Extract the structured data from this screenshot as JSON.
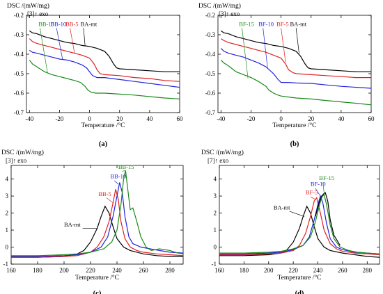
{
  "chart_data": [
    {
      "type": "line",
      "panel_label": "(a)",
      "ylabel": "DSC /(mW/mg)",
      "exo_label": "[3]↑ exo",
      "xlabel": "Temperature /°C",
      "xlim": [
        -42,
        60
      ],
      "ylim": [
        -0.7,
        -0.2
      ],
      "xticks": [
        -40,
        -20,
        0,
        20,
        40,
        60
      ],
      "yticks": [
        -0.2,
        -0.3,
        -0.4,
        -0.5,
        -0.6,
        -0.7
      ],
      "grid": false,
      "series": [
        {
          "name": "BB-15",
          "color": "#1a8a1a",
          "x": [
            -40,
            -38,
            -35,
            -30,
            -25,
            -20,
            -15,
            -10,
            -6,
            -3,
            -1,
            1,
            4,
            10,
            20,
            30,
            40,
            50,
            60
          ],
          "y": [
            -0.43,
            -0.45,
            -0.465,
            -0.49,
            -0.505,
            -0.515,
            -0.525,
            -0.535,
            -0.545,
            -0.565,
            -0.585,
            -0.595,
            -0.6,
            -0.6,
            -0.605,
            -0.61,
            -0.618,
            -0.625,
            -0.63
          ]
        },
        {
          "name": "BB-10",
          "color": "#2222dd",
          "x": [
            -40,
            -38,
            -35,
            -30,
            -25,
            -20,
            -15,
            -10,
            -5,
            -2,
            0,
            2,
            5,
            10,
            20,
            30,
            40,
            50,
            60
          ],
          "y": [
            -0.38,
            -0.39,
            -0.395,
            -0.405,
            -0.415,
            -0.425,
            -0.43,
            -0.44,
            -0.455,
            -0.47,
            -0.49,
            -0.51,
            -0.52,
            -0.52,
            -0.53,
            -0.54,
            -0.55,
            -0.56,
            -0.57
          ]
        },
        {
          "name": "BB-5",
          "color": "#e02020",
          "x": [
            -40,
            -38,
            -35,
            -30,
            -25,
            -20,
            -15,
            -10,
            -5,
            0,
            3,
            5,
            7,
            10,
            20,
            30,
            40,
            50,
            60
          ],
          "y": [
            -0.32,
            -0.335,
            -0.345,
            -0.355,
            -0.365,
            -0.375,
            -0.385,
            -0.395,
            -0.405,
            -0.42,
            -0.45,
            -0.48,
            -0.5,
            -0.505,
            -0.51,
            -0.52,
            -0.525,
            -0.535,
            -0.54
          ]
        },
        {
          "name": "BA-mt",
          "color": "#000000",
          "x": [
            -40,
            -38,
            -35,
            -30,
            -25,
            -20,
            -15,
            -10,
            -5,
            0,
            5,
            10,
            13,
            16,
            18,
            20,
            30,
            40,
            50,
            60
          ],
          "y": [
            -0.28,
            -0.29,
            -0.295,
            -0.31,
            -0.32,
            -0.33,
            -0.34,
            -0.345,
            -0.355,
            -0.36,
            -0.37,
            -0.385,
            -0.41,
            -0.45,
            -0.47,
            -0.475,
            -0.48,
            -0.485,
            -0.49,
            -0.49
          ]
        }
      ],
      "labels": [
        {
          "text": "BB-15",
          "color": "#1a8a1a",
          "x": -34,
          "y": -0.255,
          "tx": -33,
          "ty": -0.265,
          "lx": -28,
          "ly": -0.495
        },
        {
          "text": "BB-10",
          "color": "#2222dd",
          "x": -26,
          "y": -0.255,
          "tx": -22,
          "ty": -0.265,
          "lx": -18,
          "ly": -0.425
        },
        {
          "text": "BB-5",
          "color": "#e02020",
          "x": -16,
          "y": -0.255,
          "tx": -13,
          "ty": -0.265,
          "lx": -10,
          "ly": -0.395
        },
        {
          "text": "BA-mt",
          "color": "#000000",
          "x": -6,
          "y": -0.255,
          "tx": -4,
          "ty": -0.265,
          "lx": -3,
          "ly": -0.355
        }
      ]
    },
    {
      "type": "line",
      "panel_label": "(b)",
      "ylabel": "DSC /(mW/mg)",
      "exo_label": "[3]↑ exo",
      "xlabel": "Temperature /°C",
      "xlim": [
        -42,
        60
      ],
      "ylim": [
        -0.7,
        -0.2
      ],
      "xticks": [
        -40,
        -20,
        0,
        20,
        40,
        60
      ],
      "yticks": [
        -0.2,
        -0.3,
        -0.4,
        -0.5,
        -0.6,
        -0.7
      ],
      "grid": false,
      "series": [
        {
          "name": "BF-15",
          "color": "#1a8a1a",
          "x": [
            -40,
            -38,
            -35,
            -30,
            -25,
            -20,
            -15,
            -10,
            -8,
            -5,
            -2,
            0,
            5,
            10,
            20,
            30,
            40,
            50,
            60
          ],
          "y": [
            -0.43,
            -0.445,
            -0.46,
            -0.49,
            -0.505,
            -0.52,
            -0.54,
            -0.565,
            -0.585,
            -0.6,
            -0.61,
            -0.615,
            -0.62,
            -0.625,
            -0.63,
            -0.638,
            -0.645,
            -0.652,
            -0.66
          ]
        },
        {
          "name": "BF-10",
          "color": "#2222dd",
          "x": [
            -40,
            -38,
            -35,
            -30,
            -25,
            -20,
            -15,
            -10,
            -5,
            -2,
            0,
            5,
            10,
            20,
            30,
            40,
            50,
            60
          ],
          "y": [
            -0.37,
            -0.385,
            -0.395,
            -0.405,
            -0.415,
            -0.43,
            -0.445,
            -0.465,
            -0.5,
            -0.53,
            -0.545,
            -0.545,
            -0.548,
            -0.55,
            -0.558,
            -0.565,
            -0.57,
            -0.575
          ]
        },
        {
          "name": "BF-5",
          "color": "#e02020",
          "x": [
            -40,
            -38,
            -35,
            -30,
            -25,
            -20,
            -15,
            -10,
            -5,
            0,
            3,
            5,
            8,
            10,
            20,
            30,
            40,
            50,
            60
          ],
          "y": [
            -0.32,
            -0.33,
            -0.34,
            -0.35,
            -0.36,
            -0.37,
            -0.38,
            -0.39,
            -0.405,
            -0.42,
            -0.45,
            -0.48,
            -0.495,
            -0.5,
            -0.505,
            -0.51,
            -0.515,
            -0.52,
            -0.52
          ]
        },
        {
          "name": "BA-mt",
          "color": "#000000",
          "x": [
            -40,
            -38,
            -35,
            -30,
            -25,
            -20,
            -15,
            -10,
            -5,
            0,
            5,
            10,
            13,
            16,
            18,
            20,
            30,
            40,
            50,
            60
          ],
          "y": [
            -0.28,
            -0.29,
            -0.295,
            -0.31,
            -0.32,
            -0.33,
            -0.34,
            -0.345,
            -0.355,
            -0.36,
            -0.37,
            -0.385,
            -0.41,
            -0.45,
            -0.47,
            -0.475,
            -0.48,
            -0.485,
            -0.49,
            -0.49
          ]
        }
      ],
      "labels": [
        {
          "text": "BF-15",
          "color": "#1a8a1a",
          "x": -28,
          "y": -0.255,
          "tx": -26,
          "ty": -0.265,
          "lx": -22,
          "ly": -0.525
        },
        {
          "text": "BF-10",
          "color": "#2222dd",
          "x": -15,
          "y": -0.255,
          "tx": -12,
          "ty": -0.265,
          "lx": -9,
          "ly": -0.47
        },
        {
          "text": "BF-5",
          "color": "#e02020",
          "x": -3,
          "y": -0.255,
          "tx": 0,
          "ty": -0.265,
          "lx": 3,
          "ly": -0.44
        },
        {
          "text": "BA-mt",
          "color": "#000000",
          "x": 6,
          "y": -0.255,
          "tx": 10,
          "ty": -0.265,
          "lx": 12,
          "ly": -0.395
        }
      ]
    },
    {
      "type": "line",
      "panel_label": "(c)",
      "ylabel": "DSC /(mW/mg)",
      "exo_label": "[3]↑ exo",
      "xlabel": "Temperature /°C",
      "xlim": [
        160,
        290
      ],
      "ylim": [
        -1,
        4.8
      ],
      "xticks": [
        160,
        180,
        200,
        220,
        240,
        260,
        280
      ],
      "yticks": [
        -1,
        0,
        1,
        2,
        3,
        4
      ],
      "grid": false,
      "series": [
        {
          "name": "BA-mt",
          "color": "#000000",
          "x": [
            160,
            180,
            200,
            210,
            215,
            220,
            225,
            228,
            231,
            234,
            237,
            240,
            245,
            250,
            260,
            270,
            280,
            290
          ],
          "y": [
            -0.6,
            -0.6,
            -0.55,
            -0.4,
            -0.2,
            0.3,
            1.1,
            1.8,
            2.4,
            2.0,
            1.2,
            0.5,
            0.0,
            -0.2,
            -0.4,
            -0.5,
            -0.55,
            -0.55
          ]
        },
        {
          "name": "BB-5",
          "color": "#e02020",
          "x": [
            160,
            180,
            200,
            210,
            220,
            225,
            230,
            234,
            237,
            239,
            241,
            243,
            246,
            250,
            255,
            260,
            270,
            280,
            290
          ],
          "y": [
            -0.6,
            -0.6,
            -0.55,
            -0.5,
            -0.3,
            0.0,
            0.6,
            1.5,
            2.6,
            3.4,
            2.8,
            1.5,
            0.5,
            0.0,
            -0.2,
            -0.3,
            -0.4,
            -0.45,
            -0.5
          ]
        },
        {
          "name": "BB-10",
          "color": "#2222dd",
          "x": [
            160,
            180,
            200,
            210,
            220,
            228,
            233,
            237,
            240,
            242,
            244,
            246,
            249,
            252,
            258,
            265,
            272,
            280,
            290
          ],
          "y": [
            -0.55,
            -0.55,
            -0.5,
            -0.45,
            -0.3,
            0.0,
            0.6,
            1.8,
            3.0,
            3.8,
            3.2,
            1.8,
            0.6,
            0.2,
            0.0,
            -0.1,
            -0.2,
            -0.3,
            -0.35
          ]
        },
        {
          "name": "BB-15",
          "color": "#1a8a1a",
          "x": [
            160,
            180,
            200,
            210,
            220,
            230,
            236,
            240,
            243,
            245,
            246.5,
            248,
            250,
            252,
            255,
            258,
            262,
            266,
            272,
            280,
            286,
            290
          ],
          "y": [
            -0.5,
            -0.5,
            -0.45,
            -0.4,
            -0.3,
            -0.1,
            0.3,
            1.0,
            2.5,
            4.0,
            4.5,
            3.5,
            2.2,
            2.3,
            1.5,
            0.6,
            0.0,
            -0.2,
            -0.1,
            -0.2,
            -0.35,
            -0.4
          ]
        }
      ],
      "labels": [
        {
          "text": "BB-15",
          "color": "#1a8a1a",
          "x": 241,
          "y": 4.6,
          "tx": 244,
          "ty": 4.45,
          "lx": 246,
          "ly": 4.5
        },
        {
          "text": "BB-10",
          "color": "#2222dd",
          "x": 235,
          "y": 4.05,
          "tx": 238,
          "ty": 3.9,
          "lx": 241,
          "ly": 3.7
        },
        {
          "text": "BB-5",
          "color": "#e02020",
          "x": 226,
          "y": 3.0,
          "tx": 232,
          "ty": 2.9,
          "lx": 237,
          "ly": 2.6
        },
        {
          "text": "BA-mt",
          "color": "#000000",
          "x": 200,
          "y": 1.2,
          "tx": 214,
          "ty": 1.1,
          "lx": 225,
          "ly": 1.1
        }
      ]
    },
    {
      "type": "line",
      "panel_label": "(d)",
      "ylabel": "DSC /(mW/mg)",
      "exo_label": "[7]↑ exo",
      "xlabel": "Temperature /°C",
      "xlim": [
        160,
        290
      ],
      "ylim": [
        -1,
        4.8
      ],
      "xticks": [
        160,
        180,
        200,
        220,
        240,
        260,
        280
      ],
      "yticks": [
        -1,
        0,
        1,
        2,
        3,
        4
      ],
      "grid": false,
      "series": [
        {
          "name": "BA-mt",
          "color": "#000000",
          "x": [
            160,
            180,
            200,
            210,
            215,
            220,
            225,
            228,
            231,
            234,
            237,
            240,
            245,
            250,
            260,
            270,
            280,
            290
          ],
          "y": [
            -0.5,
            -0.5,
            -0.45,
            -0.35,
            -0.15,
            0.3,
            1.1,
            1.8,
            2.4,
            2.0,
            1.2,
            0.5,
            0.0,
            -0.2,
            -0.35,
            -0.45,
            -0.55,
            -0.6
          ]
        },
        {
          "name": "BF-5",
          "color": "#e02020",
          "x": [
            160,
            180,
            200,
            210,
            220,
            225,
            230,
            234,
            237,
            239,
            242,
            245,
            250,
            255,
            260,
            270,
            280,
            290
          ],
          "y": [
            -0.45,
            -0.45,
            -0.4,
            -0.35,
            -0.2,
            0.1,
            0.8,
            1.8,
            2.7,
            2.9,
            2.0,
            1.0,
            0.2,
            -0.1,
            -0.25,
            -0.35,
            -0.4,
            -0.45
          ]
        },
        {
          "name": "BF-10",
          "color": "#2222dd",
          "x": [
            160,
            180,
            200,
            210,
            220,
            228,
            233,
            237,
            240,
            242,
            244,
            247,
            250,
            255,
            260,
            270,
            280,
            290
          ],
          "y": [
            -0.4,
            -0.4,
            -0.35,
            -0.3,
            -0.15,
            0.1,
            0.6,
            1.6,
            2.5,
            3.0,
            2.6,
            1.4,
            0.5,
            0.0,
            -0.15,
            -0.3,
            -0.35,
            -0.4
          ]
        },
        {
          "name": "BF-15",
          "color": "#1a8a1a",
          "x": [
            160,
            180,
            200,
            210,
            220,
            228,
            234,
            238,
            241,
            243,
            245,
            247,
            250,
            253,
            258,
            265,
            272,
            280,
            290
          ],
          "y": [
            -0.35,
            -0.35,
            -0.3,
            -0.25,
            -0.1,
            0.1,
            0.6,
            1.5,
            2.4,
            2.9,
            3.1,
            2.5,
            1.3,
            0.5,
            0.0,
            -0.2,
            -0.3,
            -0.35,
            -0.4
          ]
        },
        {
          "name": "BF-15-black",
          "color": "#000000",
          "x": [
            238,
            241,
            243,
            245,
            246,
            248,
            250,
            253,
            258
          ],
          "y": [
            1.8,
            2.6,
            3.0,
            3.15,
            3.2,
            2.7,
            1.6,
            0.7,
            0.1
          ]
        }
      ],
      "labels": [
        {
          "text": "BF-15",
          "color": "#1a8a1a",
          "x": 241,
          "y": 3.95,
          "tx": 244,
          "ty": 3.8,
          "lx": 245,
          "ly": 3.2
        },
        {
          "text": "BF-10",
          "color": "#2222dd",
          "x": 234,
          "y": 3.6,
          "tx": 238,
          "ty": 3.45,
          "lx": 242,
          "ly": 3.0
        },
        {
          "text": "BF-5",
          "color": "#e02020",
          "x": 230,
          "y": 3.1,
          "tx": 234,
          "ty": 2.95,
          "lx": 238,
          "ly": 2.8
        },
        {
          "text": "BA-mt",
          "color": "#000000",
          "x": 204,
          "y": 2.2,
          "tx": 217,
          "ty": 2.1,
          "lx": 229,
          "ly": 1.8
        }
      ]
    }
  ]
}
